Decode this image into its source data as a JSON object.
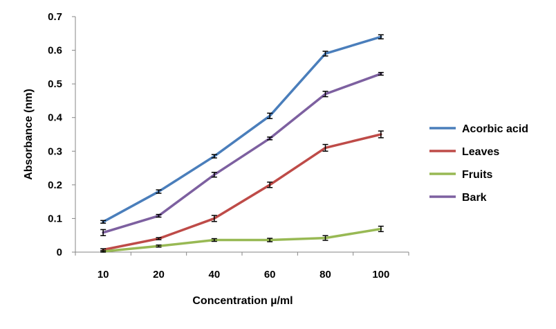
{
  "chart_data": {
    "type": "line",
    "title": "",
    "xlabel": "Concentration µ/ml",
    "ylabel": "Absorbance (nm)",
    "categories": [
      "10",
      "20",
      "40",
      "60",
      "80",
      "100"
    ],
    "ylim": [
      0,
      0.7
    ],
    "yticks": [
      "0",
      "0.1",
      "0.2",
      "0.3",
      "0.4",
      "0.5",
      "0.6",
      "0.7"
    ],
    "grid": false,
    "legend_position": "right",
    "series": [
      {
        "name": "Acorbic acid",
        "color": "#4a7ebb",
        "values": [
          0.09,
          0.18,
          0.285,
          0.405,
          0.59,
          0.64
        ],
        "errors": [
          0.004,
          0.005,
          0.005,
          0.008,
          0.007,
          0.006
        ]
      },
      {
        "name": "Leaves",
        "color": "#be4b48",
        "values": [
          0.007,
          0.04,
          0.1,
          0.2,
          0.31,
          0.35
        ],
        "errors": [
          0.003,
          0.003,
          0.009,
          0.008,
          0.01,
          0.01
        ]
      },
      {
        "name": "Fruits",
        "color": "#98b954",
        "values": [
          0.002,
          0.018,
          0.036,
          0.036,
          0.042,
          0.069
        ],
        "errors": [
          0.002,
          0.003,
          0.004,
          0.005,
          0.007,
          0.008
        ]
      },
      {
        "name": "Bark",
        "color": "#7d60a0",
        "values": [
          0.058,
          0.108,
          0.23,
          0.338,
          0.47,
          0.53
        ],
        "errors": [
          0.009,
          0.004,
          0.007,
          0.004,
          0.008,
          0.004
        ]
      }
    ]
  }
}
